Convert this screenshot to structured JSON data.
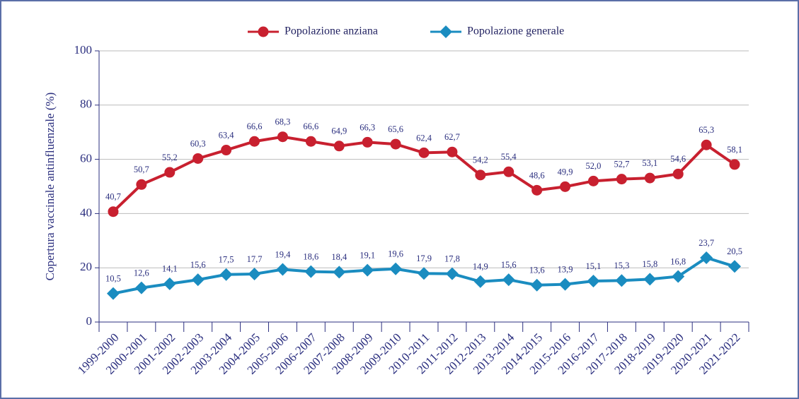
{
  "chart_data": {
    "type": "line",
    "y_label": "Copertura vaccinale antinfluenzale (%)",
    "categories": [
      "1999-2000",
      "2000-2001",
      "2001-2002",
      "2002-2003",
      "2003-2004",
      "2004-2005",
      "2005-2006",
      "2006-2007",
      "2007-2008",
      "2008-2009",
      "2009-2010",
      "2010-2011",
      "2011-2012",
      "2012-2013",
      "2013-2014",
      "2014-2015",
      "2015-2016",
      "2016-2017",
      "2017-2018",
      "2018-2019",
      "2019-2020",
      "2020-2021",
      "2021-2022"
    ],
    "series": [
      {
        "name": "Popolazione anziana",
        "color": "#c8202f",
        "marker": "circle",
        "values": [
          40.7,
          50.7,
          55.2,
          60.3,
          63.4,
          66.6,
          68.3,
          66.6,
          64.9,
          66.3,
          65.6,
          62.4,
          62.7,
          54.2,
          55.4,
          48.6,
          49.9,
          52.0,
          52.7,
          53.1,
          54.6,
          65.3,
          58.1
        ],
        "value_labels": [
          "40,7",
          "50,7",
          "55,2",
          "60,3",
          "63,4",
          "66,6",
          "68,3",
          "66,6",
          "64,9",
          "66,3",
          "65,6",
          "62,4",
          "62,7",
          "54,2",
          "55,4",
          "48,6",
          "49,9",
          "52,0",
          "52,7",
          "53,1",
          "54,6",
          "65,3",
          "58,1"
        ]
      },
      {
        "name": "Popolazione generale",
        "color": "#1a8cc0",
        "marker": "diamond",
        "values": [
          10.5,
          12.6,
          14.1,
          15.6,
          17.5,
          17.7,
          19.4,
          18.6,
          18.4,
          19.1,
          19.6,
          17.9,
          17.8,
          14.9,
          15.6,
          13.6,
          13.9,
          15.1,
          15.3,
          15.8,
          16.8,
          23.7,
          20.5
        ],
        "value_labels": [
          "10,5",
          "12,6",
          "14,1",
          "15,6",
          "17,5",
          "17,7",
          "19,4",
          "18,6",
          "18,4",
          "19,1",
          "19,6",
          "17,9",
          "17,8",
          "14,9",
          "15,6",
          "13,6",
          "13,9",
          "15,1",
          "15,3",
          "15,8",
          "16,8",
          "23,7",
          "20,5"
        ]
      }
    ],
    "ylim": [
      0,
      100
    ],
    "yticks": [
      0,
      20,
      40,
      60,
      80,
      100
    ],
    "grid": true
  }
}
